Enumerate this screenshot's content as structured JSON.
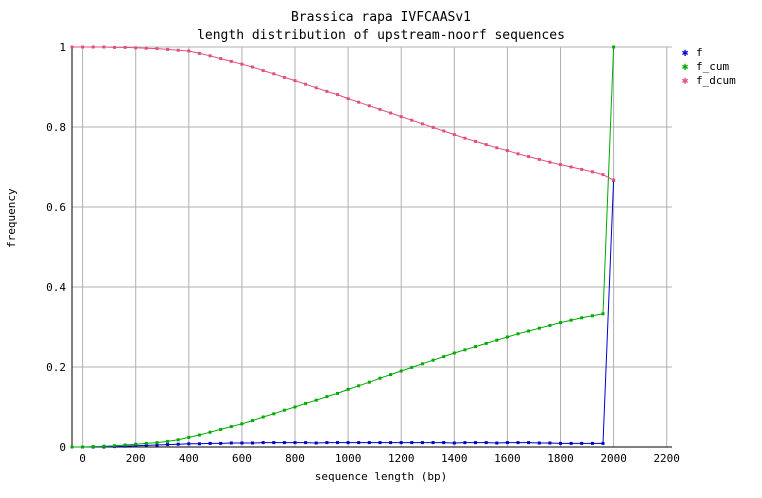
{
  "chart_data": {
    "type": "line",
    "title": "Brassica rapa IVFCAASv1",
    "subtitle": "length distribution of upstream-noorf sequences",
    "xlabel": "sequence length (bp)",
    "ylabel": "frequency",
    "xlim": [
      -40,
      2220
    ],
    "ylim": [
      0,
      1
    ],
    "x_ticks": [
      "0",
      "200",
      "400",
      "600",
      "800",
      "1000",
      "1200",
      "1400",
      "1600",
      "1800",
      "2000",
      "2200"
    ],
    "y_ticks": [
      "0",
      "0.2",
      "0.4",
      "0.6",
      "0.8",
      "1"
    ],
    "grid": true,
    "legend_position": "top-right",
    "series": [
      {
        "name": "f",
        "color": "#0000cc",
        "x": [
          -40,
          0,
          40,
          80,
          120,
          160,
          200,
          240,
          280,
          320,
          360,
          400,
          440,
          480,
          520,
          560,
          600,
          640,
          680,
          720,
          760,
          800,
          840,
          880,
          920,
          960,
          1000,
          1040,
          1080,
          1120,
          1160,
          1200,
          1240,
          1280,
          1320,
          1360,
          1400,
          1440,
          1480,
          1520,
          1560,
          1600,
          1640,
          1680,
          1720,
          1760,
          1800,
          1840,
          1880,
          1920,
          1960,
          2000
        ],
        "y": [
          0,
          0,
          0,
          0,
          0.001,
          0.002,
          0.003,
          0.004,
          0.005,
          0.006,
          0.007,
          0.008,
          0.008,
          0.009,
          0.009,
          0.01,
          0.01,
          0.01,
          0.011,
          0.011,
          0.011,
          0.011,
          0.011,
          0.01,
          0.011,
          0.011,
          0.011,
          0.011,
          0.011,
          0.011,
          0.011,
          0.011,
          0.011,
          0.011,
          0.011,
          0.011,
          0.01,
          0.011,
          0.011,
          0.011,
          0.01,
          0.011,
          0.011,
          0.011,
          0.01,
          0.01,
          0.009,
          0.009,
          0.009,
          0.009,
          0.009,
          0.667
        ]
      },
      {
        "name": "f_cum",
        "color": "#00aa00",
        "x": [
          -40,
          0,
          40,
          80,
          120,
          160,
          200,
          240,
          280,
          320,
          360,
          400,
          440,
          480,
          520,
          560,
          600,
          640,
          680,
          720,
          760,
          800,
          840,
          880,
          920,
          960,
          1000,
          1040,
          1080,
          1120,
          1160,
          1200,
          1240,
          1280,
          1320,
          1360,
          1400,
          1440,
          1480,
          1520,
          1560,
          1600,
          1640,
          1680,
          1720,
          1760,
          1800,
          1840,
          1880,
          1920,
          1960,
          2000
        ],
        "y": [
          0,
          0,
          0.001,
          0.002,
          0.003,
          0.005,
          0.007,
          0.009,
          0.011,
          0.014,
          0.018,
          0.024,
          0.03,
          0.037,
          0.044,
          0.051,
          0.058,
          0.066,
          0.075,
          0.083,
          0.092,
          0.1,
          0.109,
          0.117,
          0.126,
          0.134,
          0.144,
          0.153,
          0.162,
          0.172,
          0.181,
          0.19,
          0.199,
          0.208,
          0.217,
          0.226,
          0.235,
          0.243,
          0.251,
          0.259,
          0.267,
          0.275,
          0.283,
          0.29,
          0.297,
          0.304,
          0.311,
          0.317,
          0.323,
          0.328,
          0.333,
          1.0
        ]
      },
      {
        "name": "f_dcum",
        "color": "#e0507a",
        "x": [
          -40,
          0,
          40,
          80,
          120,
          160,
          200,
          240,
          280,
          320,
          360,
          400,
          440,
          480,
          520,
          560,
          600,
          640,
          680,
          720,
          760,
          800,
          840,
          880,
          920,
          960,
          1000,
          1040,
          1080,
          1120,
          1160,
          1200,
          1240,
          1280,
          1320,
          1360,
          1400,
          1440,
          1480,
          1520,
          1560,
          1600,
          1640,
          1680,
          1720,
          1760,
          1800,
          1840,
          1880,
          1920,
          1960,
          2000
        ],
        "y": [
          1.0,
          1.0,
          1.0,
          1.0,
          0.999,
          0.999,
          0.998,
          0.997,
          0.996,
          0.994,
          0.992,
          0.99,
          0.984,
          0.978,
          0.971,
          0.964,
          0.957,
          0.95,
          0.941,
          0.933,
          0.924,
          0.916,
          0.907,
          0.898,
          0.889,
          0.881,
          0.871,
          0.862,
          0.853,
          0.844,
          0.835,
          0.826,
          0.817,
          0.808,
          0.799,
          0.79,
          0.781,
          0.772,
          0.764,
          0.756,
          0.748,
          0.741,
          0.733,
          0.726,
          0.719,
          0.712,
          0.706,
          0.7,
          0.694,
          0.688,
          0.681,
          0.667
        ]
      }
    ]
  }
}
